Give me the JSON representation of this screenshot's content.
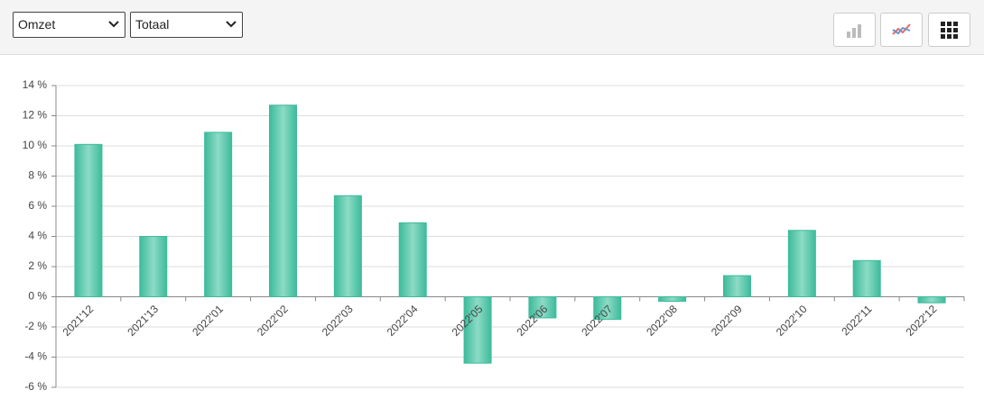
{
  "toolbar": {
    "selects": [
      "Omzet",
      "Totaal"
    ]
  },
  "chart_data": {
    "type": "bar",
    "categories": [
      "2021'12",
      "2021'13",
      "2022'01",
      "2022'02",
      "2022'03",
      "2022'04",
      "2022'05",
      "2022'06",
      "2022'07",
      "2022'08",
      "2022'09",
      "2022'10",
      "2022'11",
      "2022'12"
    ],
    "values": [
      10.1,
      4.0,
      10.9,
      12.7,
      6.7,
      4.9,
      -4.4,
      -1.4,
      -1.5,
      -0.3,
      1.4,
      4.4,
      2.4,
      -0.4
    ],
    "color": "#3dbb9b",
    "ylim": [
      -6,
      14
    ],
    "yticks": [
      {
        "value": -6,
        "label": "-6 %"
      },
      {
        "value": -4,
        "label": "-4 %"
      },
      {
        "value": -2,
        "label": "-2 %"
      },
      {
        "value": 0,
        "label": "0 %"
      },
      {
        "value": 2,
        "label": "2 %"
      },
      {
        "value": 4,
        "label": "4 %"
      },
      {
        "value": 6,
        "label": "6 %"
      },
      {
        "value": 8,
        "label": "8 %"
      },
      {
        "value": 10,
        "label": "10 %"
      },
      {
        "value": 12,
        "label": "12 %"
      },
      {
        "value": 14,
        "label": "14 %"
      }
    ],
    "grid": true
  }
}
